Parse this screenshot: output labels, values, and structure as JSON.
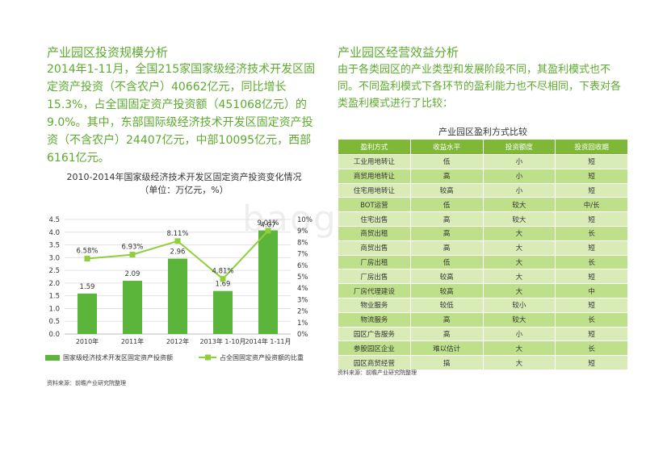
{
  "left": {
    "title": "产业园区投资规模分析",
    "paragraph": "2014年1-11月，全国215家国家级经济技术开发区固定资产投资（不含农户）40662亿元，同比增长15.3%，占全国固定资产投资额（451068亿元）的9.0%。其中，东部国际级经济技术开发区固定资产投资（不含农户）24407亿元，中部10095亿元，西部6161亿元。",
    "source": "资料来源：前瞻产业研究院整理"
  },
  "chart_data": {
    "type": "bar",
    "title": "2010-2014年国家级经济技术开发区固定资产投资变化情况",
    "subtitle": "（单位：万亿元，%）",
    "categories": [
      "2010年",
      "2011年",
      "2012年",
      "2013年 1-10月",
      "2014年 1-11月"
    ],
    "series": [
      {
        "name": "国家级经济技术开发区固定资产投资额",
        "type": "bar",
        "axis": "left",
        "values": [
          1.59,
          2.09,
          2.96,
          1.69,
          4.07
        ],
        "labels": [
          "1.59",
          "2.09",
          "2.96",
          "1.69",
          "4.07"
        ]
      },
      {
        "name": "占全国固定资产投资额的比重",
        "type": "line",
        "axis": "right",
        "values": [
          6.58,
          6.93,
          8.11,
          4.81,
          9.01
        ],
        "labels": [
          "6.58%",
          "6.93%",
          "8.11%",
          "4.81%",
          "9.01%"
        ]
      }
    ],
    "y_left": {
      "min": 0,
      "max": 4.5,
      "ticks": [
        "0.0",
        "0.5",
        "1.0",
        "1.5",
        "2.0",
        "2.5",
        "3.0",
        "3.5",
        "4.0",
        "4.5"
      ]
    },
    "y_right": {
      "min": 0,
      "max": 10,
      "ticks": [
        "0%",
        "1%",
        "2%",
        "3%",
        "4%",
        "5%",
        "6%",
        "7%",
        "8%",
        "9%",
        "10%"
      ]
    },
    "grid": true,
    "legend": "bottom",
    "colors": {
      "bar": "#5cb53b",
      "line": "#8fcf3c"
    }
  },
  "right": {
    "title": "产业园区经营效益分析",
    "paragraph": "由于各类园区的产业类型和发展阶段不同，其盈利模式也不同。不同盈利模式下各环节的盈利能力也不尽相同，下表对各类盈利模式进行了比较：",
    "table_caption": "产业园区盈利方式比较",
    "table_headers": [
      "盈利方式",
      "收益水平",
      "投资额度",
      "投资回收期"
    ],
    "table_rows": [
      [
        "工业用地转让",
        "低",
        "小",
        "短"
      ],
      [
        "商贸用地转让",
        "高",
        "小",
        "短"
      ],
      [
        "住宅用地转让",
        "较高",
        "小",
        "短"
      ],
      [
        "BOT运营",
        "低",
        "较大",
        "中/长"
      ],
      [
        "住宅出售",
        "高",
        "较大",
        "短"
      ],
      [
        "商贸出租",
        "高",
        "大",
        "长"
      ],
      [
        "商贸出售",
        "高",
        "大",
        "短"
      ],
      [
        "厂房出租",
        "低",
        "大",
        "长"
      ],
      [
        "厂房出售",
        "较高",
        "大",
        "短"
      ],
      [
        "厂房代理建设",
        "较高",
        "大",
        "中"
      ],
      [
        "物业服务",
        "较低",
        "较小",
        "短"
      ],
      [
        "物流服务",
        "高",
        "较大",
        "长"
      ],
      [
        "园区广告服务",
        "高",
        "小",
        "短"
      ],
      [
        "参股园区企业",
        "难以估计",
        "大",
        "长"
      ],
      [
        "园区商贸经营",
        "搞",
        "大",
        "短"
      ]
    ],
    "source": "资料来源：前瞻产业研究院整理"
  },
  "watermark": "baogao8.com"
}
